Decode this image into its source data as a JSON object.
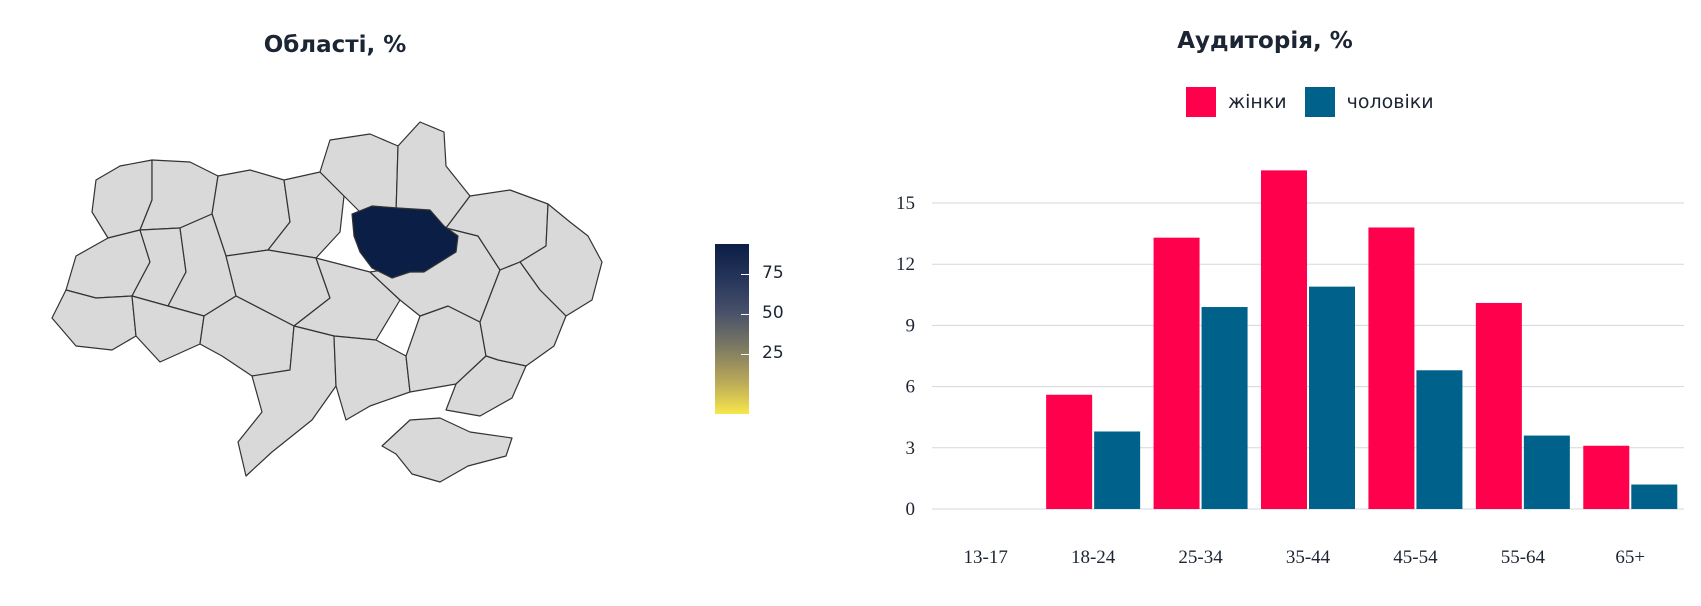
{
  "map_panel": {
    "title": "Області, %",
    "colorbar": {
      "ticks": [
        "75",
        "50",
        "25"
      ],
      "colors": [
        "#0b1e45",
        "#f7e64b"
      ]
    },
    "highlighted_region_color": "#0b1e45",
    "default_region_color": "#d9d9d9"
  },
  "chart_data": {
    "type": "bar",
    "title": "Аудиторія, %",
    "categories": [
      "13-17",
      "18-24",
      "25-34",
      "35-44",
      "45-54",
      "55-64",
      "65+"
    ],
    "series": [
      {
        "name": "жінки",
        "color": "#ff004d",
        "values": [
          0,
          5.6,
          13.3,
          16.6,
          13.8,
          10.1,
          3.1
        ]
      },
      {
        "name": "чоловіки",
        "color": "#00628b",
        "values": [
          0,
          3.8,
          9.9,
          10.9,
          6.8,
          3.6,
          1.2
        ]
      }
    ],
    "yticks": [
      0,
      3,
      6,
      9,
      12,
      15
    ],
    "ylim": [
      0,
      17
    ],
    "grid": true,
    "legend": "top"
  }
}
